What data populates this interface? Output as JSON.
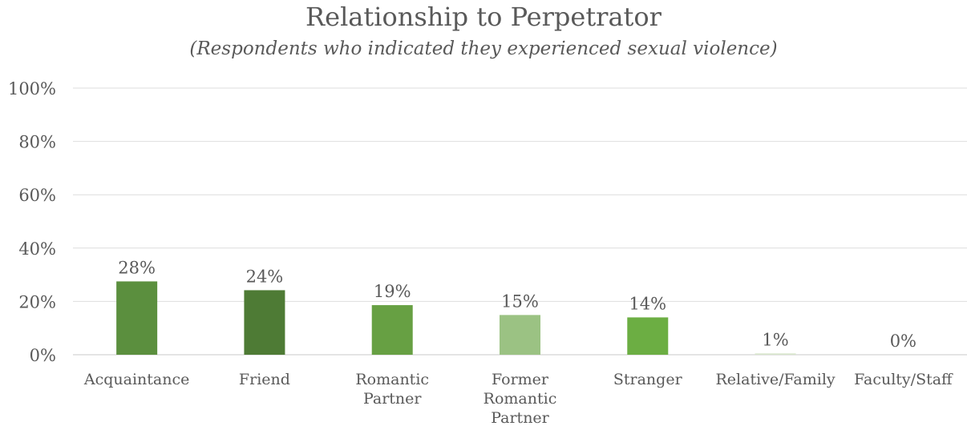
{
  "chart_data": {
    "type": "bar",
    "title": "Relationship to Perpetrator",
    "subtitle": "(Respondents who indicated they experienced sexual violence)",
    "xlabel": "",
    "ylabel": "",
    "ylim": [
      0,
      100
    ],
    "yticks": [
      0,
      20,
      40,
      60,
      80,
      100
    ],
    "ytick_labels": [
      "0%",
      "20%",
      "40%",
      "60%",
      "80%",
      "100%"
    ],
    "grid": true,
    "legend": "none",
    "categories": [
      [
        "Acquaintance"
      ],
      [
        "Friend"
      ],
      [
        "Romantic",
        "Partner"
      ],
      [
        "Former",
        "Romantic",
        "Partner"
      ],
      [
        "Stranger"
      ],
      [
        "Relative/Family"
      ],
      [
        "Faculty/Staff"
      ]
    ],
    "values": [
      27.5,
      24.2,
      18.6,
      14.9,
      14.0,
      0.5,
      0.0
    ],
    "value_labels": [
      "28%",
      "24%",
      "19%",
      "15%",
      "14%",
      "1%",
      "0%"
    ],
    "colors": [
      "#5b8f3e",
      "#4e7b35",
      "#67a043",
      "#9bc283",
      "#6cae43",
      "#d8e6cc",
      "#c5dbb1"
    ]
  }
}
